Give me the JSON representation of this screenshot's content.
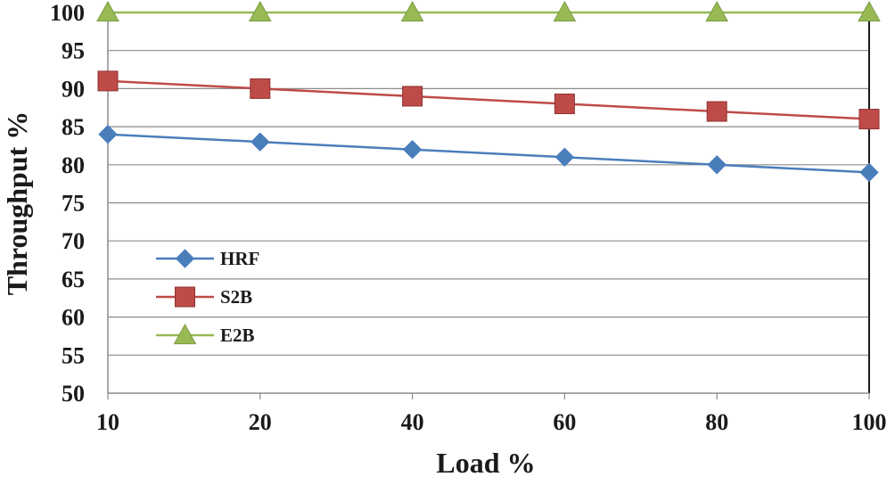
{
  "chart_data": {
    "type": "line",
    "categories": [
      "10",
      "20",
      "40",
      "60",
      "80",
      "100"
    ],
    "xlabel": "Load %",
    "ylabel": "Throughput %",
    "ylim": [
      50,
      100
    ],
    "yticks": [
      50,
      55,
      60,
      65,
      70,
      75,
      80,
      85,
      90,
      95,
      100
    ],
    "grid": "horizontal",
    "legend_position": "left-center",
    "series": [
      {
        "name": "HRF",
        "values": [
          84,
          83,
          82,
          81,
          80,
          79
        ],
        "color": "#4a7ebb",
        "marker": "diamond"
      },
      {
        "name": "S2B",
        "values": [
          91,
          90,
          89,
          88,
          87,
          86
        ],
        "color": "#be4b48",
        "marker": "square"
      },
      {
        "name": "E2B",
        "values": [
          100,
          100,
          100,
          100,
          100,
          100
        ],
        "color": "#98b954",
        "marker": "triangle"
      }
    ]
  }
}
